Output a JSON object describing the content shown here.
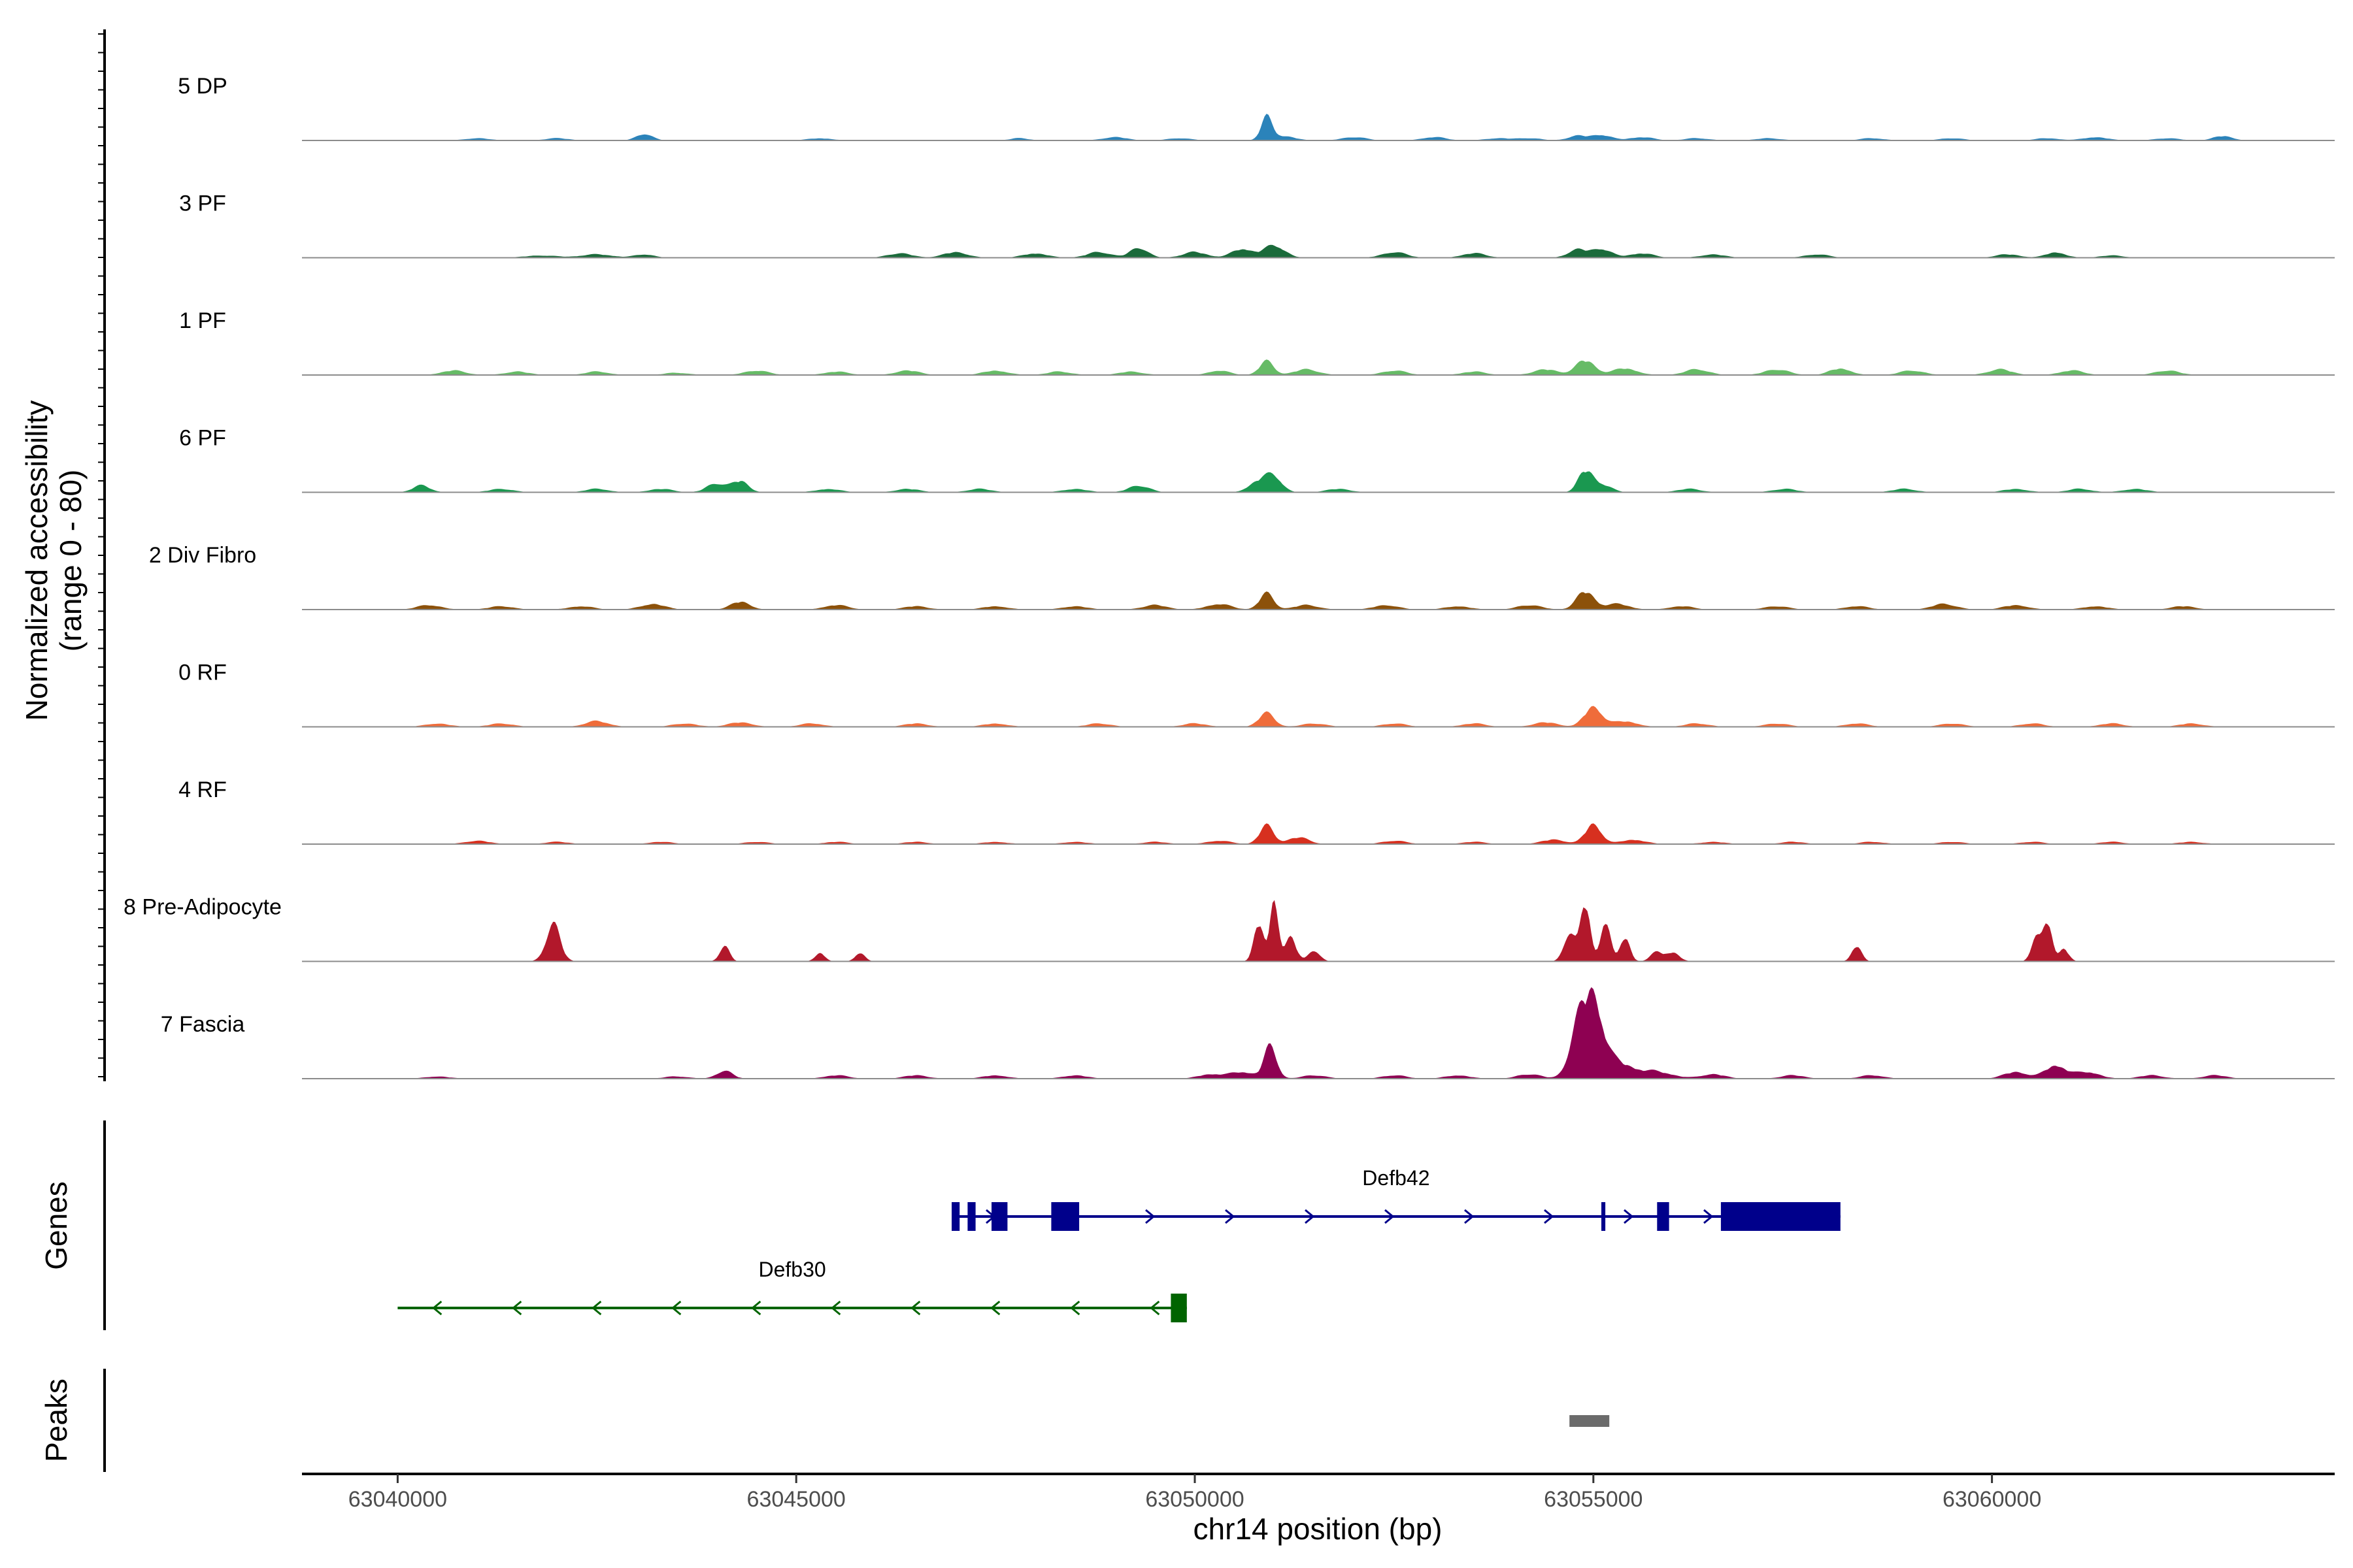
{
  "chart_data": {
    "type": "area",
    "chromosome": "chr14",
    "xlabel": "chr14 position (bp)",
    "ylabel_line1": "Normalized accessibility",
    "ylabel_line2": "(range 0 - 80)",
    "y_range": [
      0,
      80
    ],
    "xlim": [
      63038800,
      63064300
    ],
    "x_ticks": [
      63040000,
      63045000,
      63050000,
      63055000,
      63060000
    ],
    "x_tick_labels": [
      "63040000",
      "63045000",
      "63050000",
      "63055000",
      "63060000"
    ],
    "tracks": [
      {
        "name": "5 DP",
        "color": "#2b83ba",
        "peaks": [
          [
            63041000,
            2,
            150
          ],
          [
            63042000,
            2,
            150
          ],
          [
            63043100,
            6,
            100
          ],
          [
            63045300,
            2,
            150
          ],
          [
            63047800,
            2,
            120
          ],
          [
            63049000,
            3,
            150
          ],
          [
            63049800,
            2,
            150
          ],
          [
            63050900,
            19,
            70
          ],
          [
            63051100,
            4,
            150
          ],
          [
            63052000,
            3,
            150
          ],
          [
            63053000,
            3,
            150
          ],
          [
            63053800,
            2,
            150
          ],
          [
            63054200,
            2,
            150
          ],
          [
            63054800,
            4,
            120
          ],
          [
            63055100,
            5,
            120
          ],
          [
            63055600,
            3,
            150
          ],
          [
            63056300,
            2,
            150
          ],
          [
            63057200,
            2,
            150
          ],
          [
            63058500,
            2,
            150
          ],
          [
            63059500,
            2,
            150
          ],
          [
            63060700,
            2,
            150
          ],
          [
            63061300,
            3,
            150
          ],
          [
            63062200,
            2,
            150
          ],
          [
            63062900,
            4,
            120
          ]
        ]
      },
      {
        "name": "3 PF",
        "color": "#1b6b3b",
        "peaks": [
          [
            63041800,
            2,
            200
          ],
          [
            63042500,
            3,
            200
          ],
          [
            63043100,
            3,
            120
          ],
          [
            63046300,
            4,
            150
          ],
          [
            63047000,
            5,
            150
          ],
          [
            63048000,
            4,
            150
          ],
          [
            63048800,
            5,
            150
          ],
          [
            63049300,
            9,
            110
          ],
          [
            63050000,
            5,
            150
          ],
          [
            63050600,
            8,
            130
          ],
          [
            63051000,
            11,
            130
          ],
          [
            63052500,
            5,
            150
          ],
          [
            63053500,
            4,
            150
          ],
          [
            63054800,
            7,
            120
          ],
          [
            63055100,
            8,
            120
          ],
          [
            63055600,
            4,
            150
          ],
          [
            63056500,
            3,
            150
          ],
          [
            63057800,
            3,
            150
          ],
          [
            63060200,
            3,
            150
          ],
          [
            63060800,
            5,
            120
          ],
          [
            63061500,
            2,
            150
          ]
        ]
      },
      {
        "name": "1 PF",
        "color": "#66bb66",
        "peaks": [
          [
            63040700,
            4,
            150
          ],
          [
            63041500,
            3,
            150
          ],
          [
            63042500,
            3,
            150
          ],
          [
            63043500,
            2,
            150
          ],
          [
            63044500,
            4,
            150
          ],
          [
            63045500,
            3,
            150
          ],
          [
            63046400,
            4,
            150
          ],
          [
            63047500,
            4,
            150
          ],
          [
            63048300,
            3,
            150
          ],
          [
            63049200,
            3,
            150
          ],
          [
            63050300,
            4,
            130
          ],
          [
            63050900,
            12,
            90
          ],
          [
            63051400,
            5,
            150
          ],
          [
            63052500,
            4,
            150
          ],
          [
            63053500,
            3,
            150
          ],
          [
            63054400,
            5,
            150
          ],
          [
            63054900,
            13,
            120
          ],
          [
            63055400,
            6,
            150
          ],
          [
            63056300,
            5,
            150
          ],
          [
            63057300,
            5,
            150
          ],
          [
            63058100,
            6,
            130
          ],
          [
            63059000,
            4,
            150
          ],
          [
            63060100,
            5,
            150
          ],
          [
            63061000,
            4,
            150
          ],
          [
            63062200,
            4,
            150
          ]
        ]
      },
      {
        "name": "6 PF",
        "color": "#1a9850",
        "peaks": [
          [
            63040300,
            6,
            110
          ],
          [
            63041300,
            3,
            150
          ],
          [
            63042500,
            3,
            150
          ],
          [
            63043300,
            3,
            150
          ],
          [
            63044000,
            8,
            120
          ],
          [
            63044300,
            10,
            100
          ],
          [
            63045400,
            3,
            150
          ],
          [
            63046400,
            3,
            150
          ],
          [
            63047300,
            3,
            150
          ],
          [
            63048500,
            3,
            150
          ],
          [
            63049300,
            6,
            130
          ],
          [
            63050800,
            10,
            120
          ],
          [
            63051000,
            13,
            100
          ],
          [
            63051800,
            3,
            150
          ],
          [
            63054900,
            18,
            90
          ],
          [
            63055100,
            7,
            120
          ],
          [
            63056200,
            3,
            150
          ],
          [
            63057400,
            3,
            150
          ],
          [
            63058900,
            3,
            150
          ],
          [
            63060300,
            3,
            150
          ],
          [
            63061100,
            3,
            150
          ],
          [
            63061800,
            3,
            150
          ]
        ]
      },
      {
        "name": "2 Div Fibro",
        "color": "#8c510a",
        "peaks": [
          [
            63040400,
            4,
            150
          ],
          [
            63041300,
            3,
            150
          ],
          [
            63042300,
            3,
            150
          ],
          [
            63043200,
            5,
            150
          ],
          [
            63044300,
            7,
            120
          ],
          [
            63045500,
            4,
            150
          ],
          [
            63046500,
            3,
            150
          ],
          [
            63047500,
            3,
            150
          ],
          [
            63048500,
            3,
            150
          ],
          [
            63049500,
            4,
            150
          ],
          [
            63050300,
            5,
            150
          ],
          [
            63050900,
            14,
            90
          ],
          [
            63051400,
            4,
            150
          ],
          [
            63052400,
            4,
            150
          ],
          [
            63053300,
            3,
            150
          ],
          [
            63054200,
            4,
            150
          ],
          [
            63054900,
            16,
            110
          ],
          [
            63055300,
            5,
            150
          ],
          [
            63056100,
            3,
            150
          ],
          [
            63057300,
            3,
            150
          ],
          [
            63058300,
            3,
            150
          ],
          [
            63059400,
            5,
            150
          ],
          [
            63060300,
            4,
            150
          ],
          [
            63061300,
            3,
            150
          ],
          [
            63062400,
            3,
            150
          ]
        ]
      },
      {
        "name": "0 RF",
        "color": "#ef6c3a",
        "peaks": [
          [
            63040500,
            3,
            150
          ],
          [
            63041300,
            3,
            150
          ],
          [
            63042500,
            5,
            150
          ],
          [
            63043600,
            3,
            150
          ],
          [
            63044300,
            4,
            150
          ],
          [
            63045200,
            3,
            150
          ],
          [
            63046500,
            3,
            150
          ],
          [
            63047500,
            3,
            150
          ],
          [
            63048800,
            3,
            150
          ],
          [
            63050000,
            3,
            150
          ],
          [
            63050900,
            12,
            100
          ],
          [
            63051500,
            3,
            150
          ],
          [
            63052500,
            3,
            150
          ],
          [
            63053500,
            3,
            150
          ],
          [
            63054400,
            4,
            150
          ],
          [
            63055000,
            18,
            110
          ],
          [
            63055400,
            5,
            150
          ],
          [
            63056300,
            3,
            150
          ],
          [
            63057300,
            3,
            150
          ],
          [
            63058300,
            3,
            150
          ],
          [
            63059500,
            3,
            150
          ],
          [
            63060500,
            3,
            150
          ],
          [
            63061500,
            3,
            150
          ],
          [
            63062500,
            3,
            150
          ]
        ]
      },
      {
        "name": "4 RF",
        "color": "#d7301f",
        "peaks": [
          [
            63041000,
            3,
            150
          ],
          [
            63042000,
            2,
            150
          ],
          [
            63043300,
            2,
            150
          ],
          [
            63044500,
            2,
            150
          ],
          [
            63045500,
            2,
            150
          ],
          [
            63046500,
            2,
            150
          ],
          [
            63047500,
            2,
            150
          ],
          [
            63048500,
            2,
            150
          ],
          [
            63049500,
            2,
            150
          ],
          [
            63050300,
            3,
            150
          ],
          [
            63050900,
            16,
            90
          ],
          [
            63051300,
            6,
            130
          ],
          [
            63052500,
            3,
            150
          ],
          [
            63053500,
            2,
            150
          ],
          [
            63054500,
            4,
            150
          ],
          [
            63055000,
            18,
            100
          ],
          [
            63055500,
            4,
            150
          ],
          [
            63056500,
            2,
            150
          ],
          [
            63057500,
            2,
            150
          ],
          [
            63058500,
            2,
            150
          ],
          [
            63059500,
            2,
            150
          ],
          [
            63060500,
            2,
            150
          ],
          [
            63061500,
            2,
            150
          ],
          [
            63062500,
            2,
            150
          ]
        ]
      },
      {
        "name": "8 Pre-Adipocyte",
        "color": "#b2182b",
        "peaks": [
          [
            63041950,
            32,
            90
          ],
          [
            63044100,
            14,
            60
          ],
          [
            63045300,
            8,
            60
          ],
          [
            63045800,
            8,
            60
          ],
          [
            63050800,
            35,
            60
          ],
          [
            63051000,
            56,
            50
          ],
          [
            63051200,
            22,
            70
          ],
          [
            63051500,
            10,
            70
          ],
          [
            63054700,
            26,
            70
          ],
          [
            63054900,
            52,
            60
          ],
          [
            63055150,
            38,
            60
          ],
          [
            63055400,
            22,
            60
          ],
          [
            63055800,
            8,
            80
          ],
          [
            63056000,
            8,
            80
          ],
          [
            63058300,
            14,
            60
          ],
          [
            63060550,
            20,
            60
          ],
          [
            63060700,
            36,
            55
          ],
          [
            63060900,
            12,
            60
          ]
        ]
      },
      {
        "name": "7 Fascia",
        "color": "#8e0152",
        "peaks": [
          [
            63040500,
            2,
            150
          ],
          [
            63043500,
            2,
            150
          ],
          [
            63044100,
            7,
            100
          ],
          [
            63045500,
            3,
            150
          ],
          [
            63046500,
            3,
            150
          ],
          [
            63047500,
            3,
            150
          ],
          [
            63048500,
            3,
            150
          ],
          [
            63050200,
            4,
            150
          ],
          [
            63050600,
            6,
            150
          ],
          [
            63050950,
            28,
            80
          ],
          [
            63051500,
            3,
            150
          ],
          [
            63052500,
            3,
            150
          ],
          [
            63053300,
            3,
            150
          ],
          [
            63054200,
            4,
            150
          ],
          [
            63054800,
            38,
            110
          ],
          [
            63055000,
            66,
            120
          ],
          [
            63055300,
            14,
            200
          ],
          [
            63055800,
            6,
            200
          ],
          [
            63056500,
            4,
            150
          ],
          [
            63057500,
            3,
            150
          ],
          [
            63058500,
            3,
            150
          ],
          [
            63060300,
            6,
            150
          ],
          [
            63060800,
            12,
            130
          ],
          [
            63061200,
            6,
            150
          ],
          [
            63062000,
            3,
            150
          ],
          [
            63062800,
            3,
            150
          ]
        ]
      }
    ],
    "genes": [
      {
        "name": "Defb42",
        "strand": "+",
        "color": "#00008b",
        "start": 63046950,
        "end": 63058100,
        "exons": [
          [
            63046950,
            63047050
          ],
          [
            63047150,
            63047250
          ],
          [
            63047450,
            63047650
          ],
          [
            63048200,
            63048550
          ],
          [
            63055100,
            63055150
          ],
          [
            63055800,
            63055950
          ],
          [
            63056600,
            63058100
          ]
        ]
      },
      {
        "name": "Defb30",
        "strand": "-",
        "color": "#006400",
        "start": 63040000,
        "end": 63049900,
        "exons": [
          [
            63049700,
            63049900
          ]
        ]
      }
    ],
    "peaks_track": {
      "label": "Peaks",
      "regions": [
        [
          63054700,
          63055200
        ]
      ],
      "color": "#6b6b6b"
    },
    "genes_label": "Genes"
  }
}
